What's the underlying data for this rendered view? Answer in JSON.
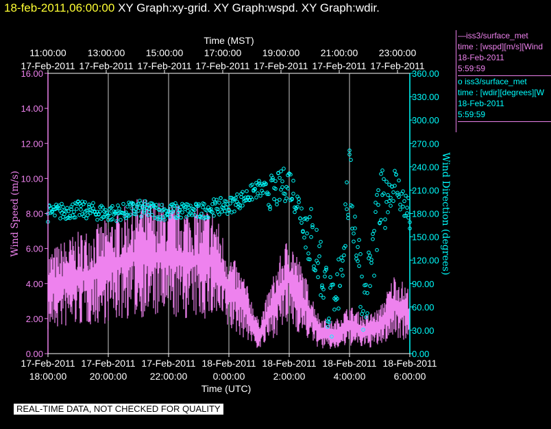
{
  "header": {
    "date": "18-feb-2011,06:00:00",
    "graphs": "XY Graph:xy-grid.  XY Graph:wspd.  XY Graph:wdir."
  },
  "legend": [
    {
      "title": "iss3/surface_met",
      "desc": "time : [wspd][m/s][Wind",
      "date": "18-Feb-2011",
      "time": "5:59:59",
      "marker": "line",
      "color": "#ee82ee"
    },
    {
      "title": "iss3/surface_met",
      "desc": "time : [wdir][degrees][W",
      "date": "18-Feb-2011",
      "time": "5:59:59",
      "marker": "circle",
      "color": "#00ffff"
    }
  ],
  "banner": "REAL-TIME DATA, NOT CHECKED FOR QUALITY",
  "chart_data": {
    "type": "line",
    "xlabel_bottom": "Time (UTC)",
    "xlabel_top": "Time (MST)",
    "ylabel_left": "Wind Speed (m/s)",
    "ylabel_right": "Wind Direction (degrees)",
    "ylim_left": [
      0,
      16
    ],
    "ylim_right": [
      0,
      360
    ],
    "grid": "vertical",
    "legend_position": "right",
    "colors": {
      "wspd": "#ee82ee",
      "wdir": "#00ffff"
    },
    "x_ticks_bottom": [
      {
        "date": "17-Feb-2011",
        "time": "18:00:00"
      },
      {
        "date": "17-Feb-2011",
        "time": "20:00:00"
      },
      {
        "date": "17-Feb-2011",
        "time": "22:00:00"
      },
      {
        "date": "18-Feb-2011",
        "time": "0:00:00"
      },
      {
        "date": "18-Feb-2011",
        "time": "2:00:00"
      },
      {
        "date": "18-Feb-2011",
        "time": "4:00:00"
      },
      {
        "date": "18-Feb-2011",
        "time": "6:00:00"
      }
    ],
    "x_ticks_top": [
      {
        "time": "11:00:00",
        "date": "17-Feb-2011"
      },
      {
        "time": "13:00:00",
        "date": "17-Feb-2011"
      },
      {
        "time": "15:00:00",
        "date": "17-Feb-2011"
      },
      {
        "time": "17:00:00",
        "date": "17-Feb-2011"
      },
      {
        "time": "19:00:00",
        "date": "17-Feb-2011"
      },
      {
        "time": "21:00:00",
        "date": "17-Feb-2011"
      },
      {
        "time": "23:00:00",
        "date": "17-Feb-2011"
      }
    ],
    "y_ticks_left": [
      "0.00",
      "2.00",
      "4.00",
      "6.00",
      "8.00",
      "10.00",
      "12.00",
      "14.00",
      "16.00"
    ],
    "y_ticks_right": [
      "0.00",
      "30.00",
      "60.00",
      "90.00",
      "120.00",
      "150.00",
      "180.00",
      "210.00",
      "240.00",
      "270.00",
      "300.00",
      "330.00",
      "360.00"
    ],
    "x_hours_from_start": [
      0,
      0.5,
      1,
      1.5,
      2,
      2.5,
      3,
      3.5,
      4,
      4.5,
      5,
      5.5,
      6,
      6.5,
      7,
      7.5,
      8,
      8.5,
      9,
      9.5,
      10,
      10.5,
      11,
      11.5,
      12
    ],
    "series": [
      {
        "name": "iss3/surface_met wspd",
        "values": [
          3.6,
          4.0,
          4.3,
          4.5,
          4.8,
          5.2,
          5.6,
          5.5,
          5.4,
          5.3,
          5.3,
          5.2,
          3.6,
          2.7,
          1.0,
          2.8,
          4.3,
          2.8,
          1.2,
          1.0,
          1.6,
          1.2,
          1.5,
          2.8,
          2.2
        ]
      },
      {
        "name": "iss3/surface_met wdir",
        "values": [
          180,
          183,
          185,
          183,
          180,
          182,
          186,
          184,
          182,
          184,
          182,
          188,
          190,
          200,
          212,
          206,
          222,
          170,
          120,
          40,
          220,
          60,
          185,
          220,
          175
        ]
      }
    ]
  }
}
